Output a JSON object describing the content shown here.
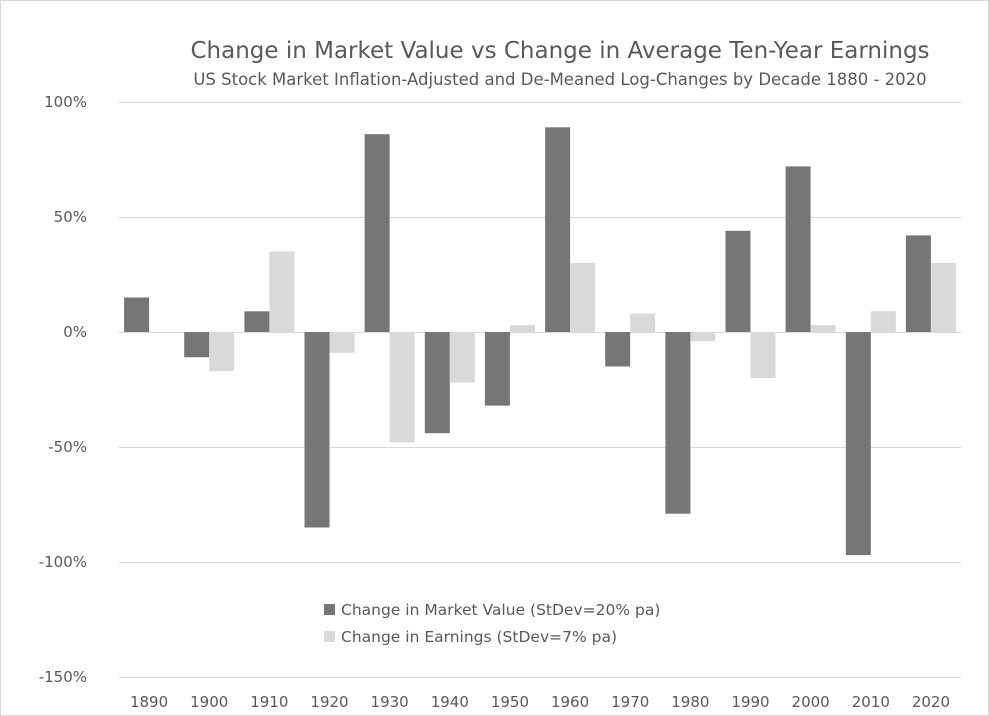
{
  "chart_data": {
    "type": "bar",
    "title": "Change in Market Value vs Change in Average Ten-Year Earnings",
    "subtitle": "US Stock Market Inflation-Adjusted and De-Meaned Log-Changes by Decade 1880 - 2020",
    "xlabel": "",
    "ylabel": "",
    "ylim": [
      -150,
      100
    ],
    "y_ticks": [
      100,
      50,
      0,
      -50,
      -100,
      -150
    ],
    "y_tick_labels": [
      "100%",
      "50%",
      "0%",
      "-50%",
      "-100%",
      "-150%"
    ],
    "grid": true,
    "legend_position": "bottom-center",
    "categories": [
      "1890",
      "1900",
      "1910",
      "1920",
      "1930",
      "1940",
      "1950",
      "1960",
      "1970",
      "1980",
      "1990",
      "2000",
      "2010",
      "2020"
    ],
    "series": [
      {
        "name": "Change in Market Value (StDev=20% pa)",
        "color": "#767676",
        "values": [
          15,
          -11,
          9,
          -85,
          86,
          -44,
          -32,
          89,
          -15,
          -79,
          44,
          72,
          -97,
          42
        ]
      },
      {
        "name": "Change in Earnings (StDev=7% pa)",
        "color": "#d9d9d9",
        "values": [
          0,
          -17,
          35,
          -9,
          -48,
          -22,
          3,
          30,
          8,
          -4,
          -20,
          3,
          9,
          30
        ]
      }
    ]
  }
}
